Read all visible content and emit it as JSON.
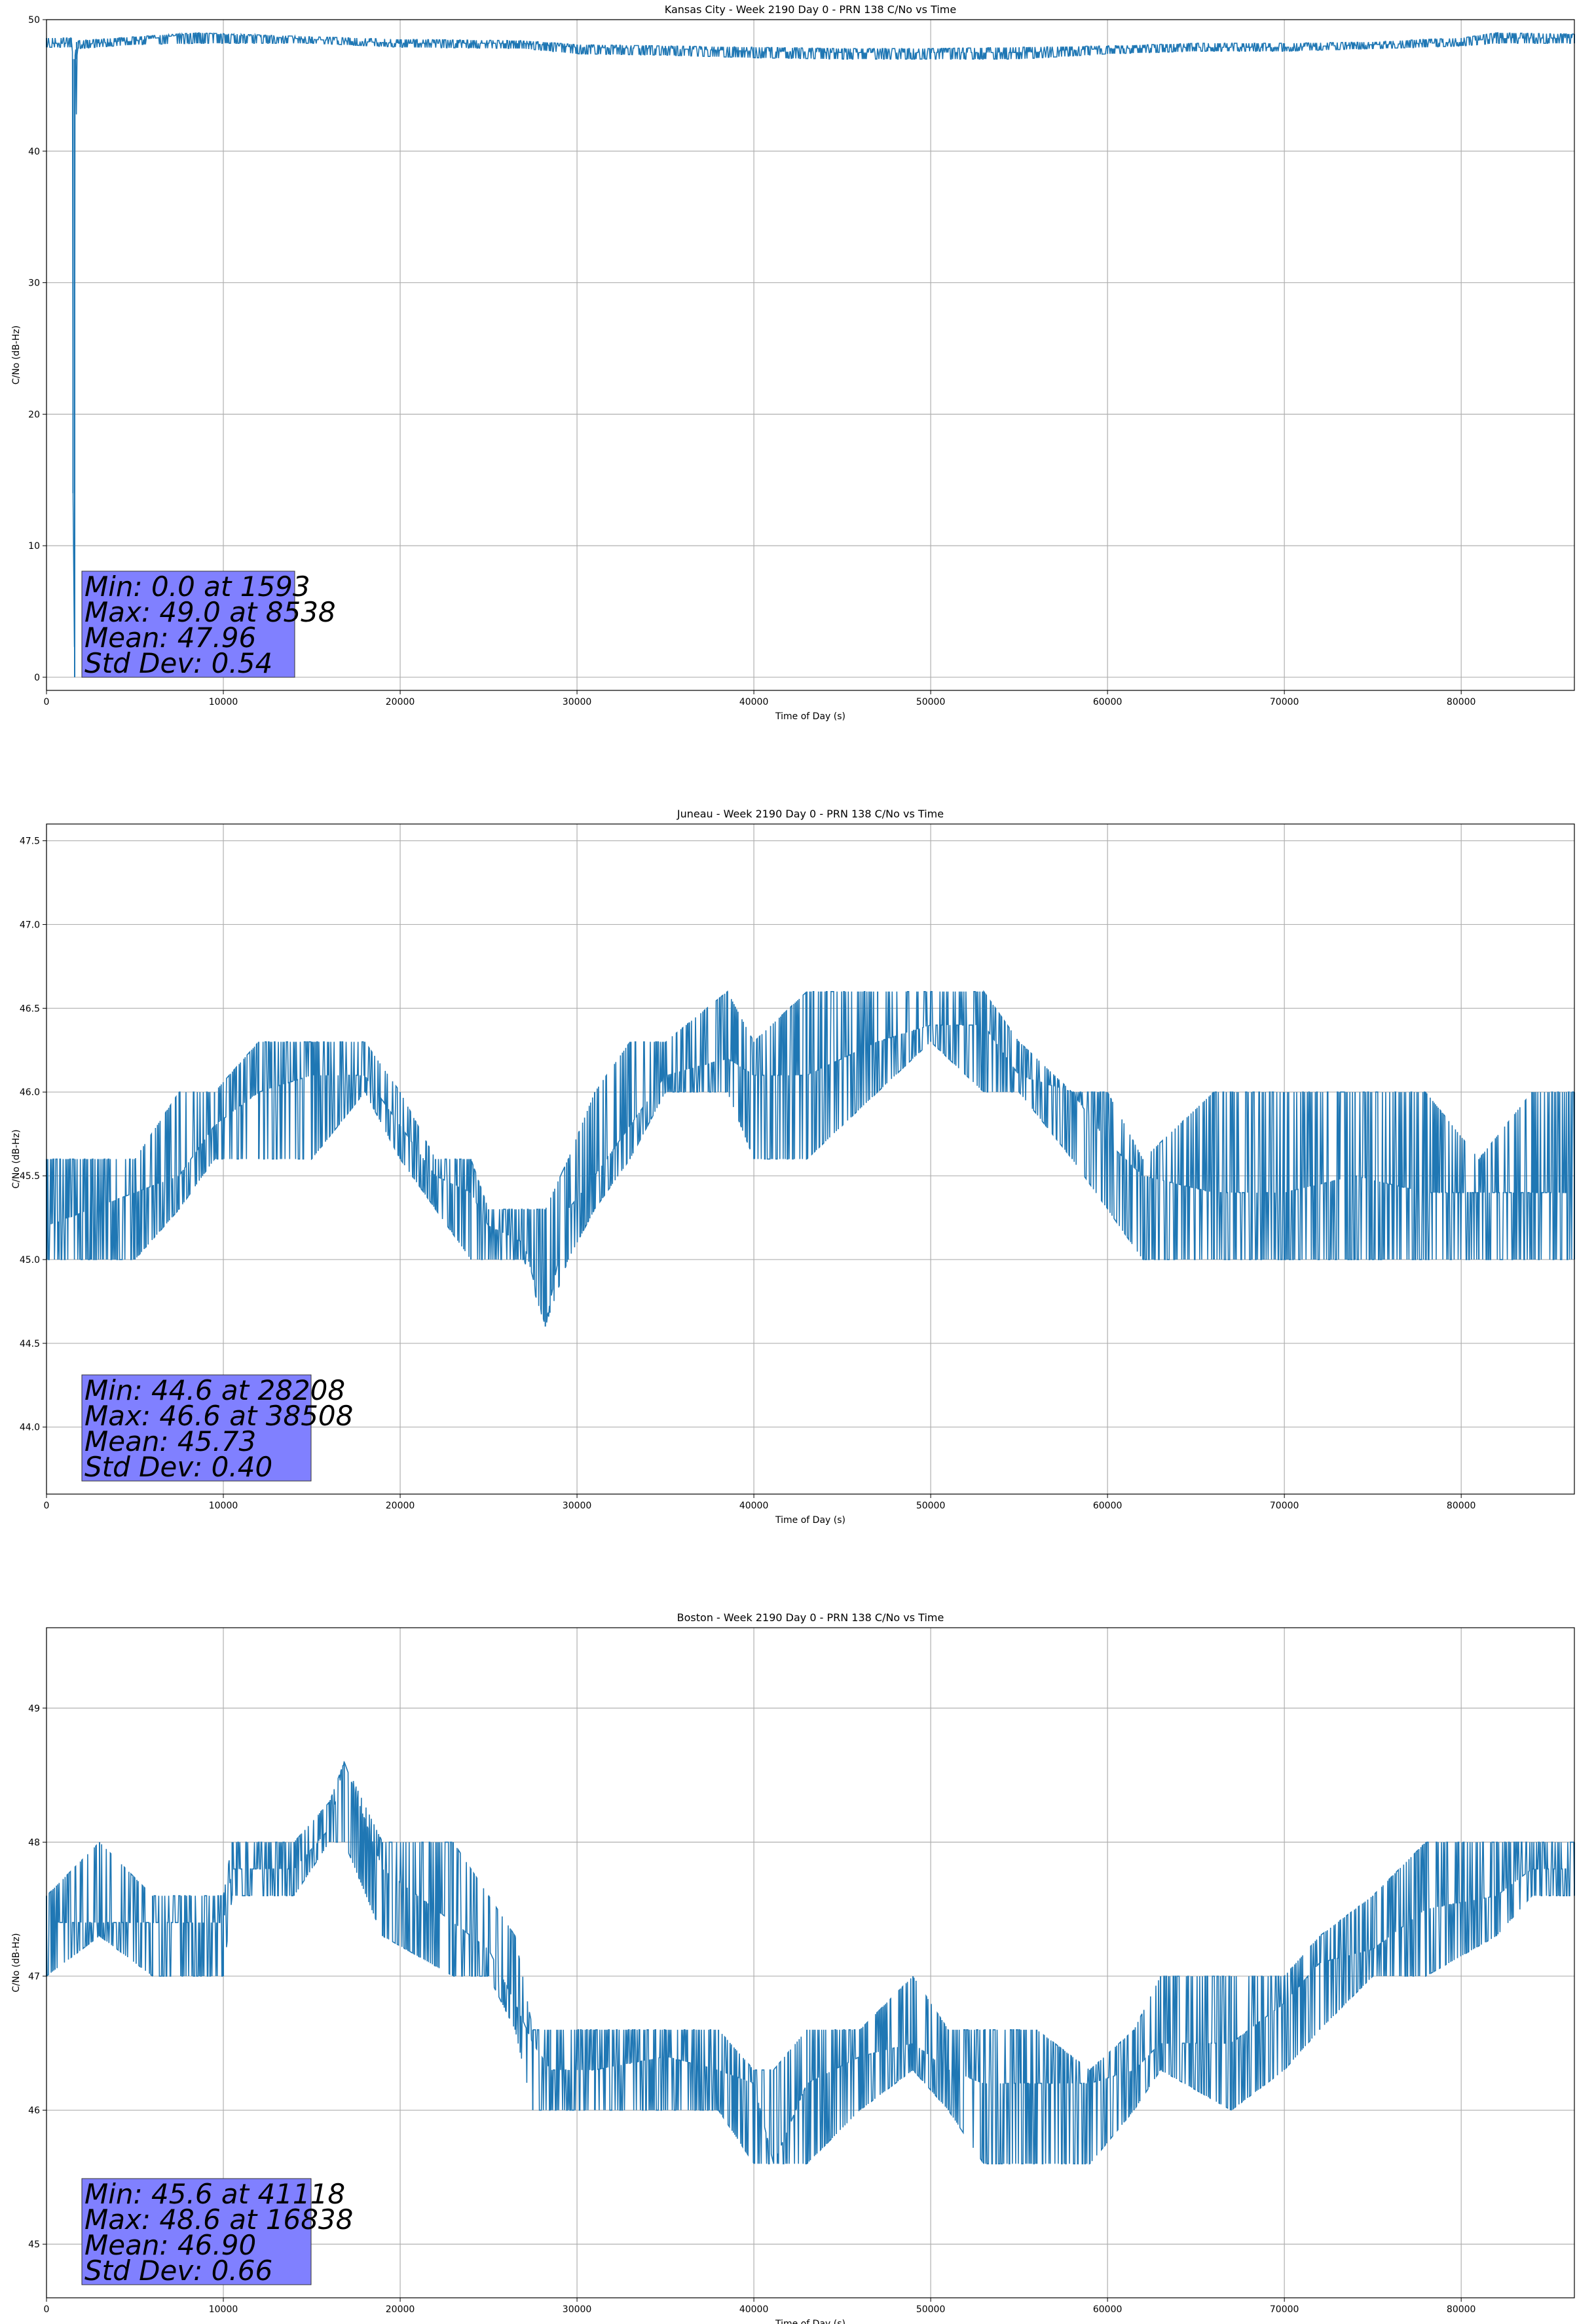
{
  "figure": {
    "background": "#ffffff",
    "series_color": "#1f77b4",
    "grid_color": "#b0b0b0",
    "stats_box_color": "#8080ff"
  },
  "chart_data": [
    {
      "type": "line",
      "title": "Kansas City - Week 2190 Day 0 - PRN 138 C/No vs Time",
      "xlabel": "Time of Day (s)",
      "ylabel": "C/No (dB-Hz)",
      "xlim": [
        0,
        86400
      ],
      "ylim": [
        -1,
        50
      ],
      "xticks": [
        0,
        10000,
        20000,
        30000,
        40000,
        50000,
        60000,
        70000,
        80000
      ],
      "yticks": [
        0,
        10,
        20,
        30,
        40,
        50
      ],
      "ytick_labels": [
        "0",
        "10",
        "20",
        "30",
        "40",
        "50"
      ],
      "grid": true,
      "stats": [
        "Min: 0.0 at 1593",
        "Max: 49.0 at 8538",
        "Mean: 47.96",
        "Std Dev: 0.54"
      ],
      "series": [
        {
          "x": [
            0,
            1400,
            1500,
            1593,
            1700,
            1800,
            5000,
            8538,
            15000,
            20000,
            27000,
            30000,
            35000,
            40000,
            45000,
            50000,
            55000,
            60000,
            65000,
            70000,
            75000,
            78000,
            80000,
            82000,
            86400
          ],
          "y": [
            48.2,
            48.2,
            14,
            0.0,
            47.0,
            48.1,
            48.4,
            49.0,
            48.5,
            48.2,
            48.2,
            47.9,
            47.8,
            47.6,
            47.5,
            47.5,
            47.5,
            47.8,
            47.9,
            47.9,
            48.1,
            48.2,
            48.3,
            48.6,
            48.6
          ],
          "band_low": [
            47.9,
            47.9,
            14,
            0.0,
            47.0,
            47.8,
            48.1,
            48.2,
            48.2,
            47.9,
            47.8,
            47.4,
            47.3,
            47.1,
            47.0,
            47.0,
            47.0,
            47.4,
            47.6,
            47.6,
            47.8,
            47.9,
            48.0,
            48.2,
            48.2
          ],
          "band_high": [
            48.6,
            48.6,
            47.0,
            47.0,
            48.3,
            48.4,
            48.7,
            49.0,
            48.7,
            48.5,
            48.4,
            48.1,
            48.0,
            47.9,
            47.8,
            47.8,
            47.9,
            48.0,
            48.2,
            48.2,
            48.3,
            48.5,
            48.6,
            49.0,
            48.9
          ]
        }
      ]
    },
    {
      "type": "line",
      "title": "Juneau - Week 2190 Day 0 - PRN 138 C/No vs Time",
      "xlabel": "Time of Day (s)",
      "ylabel": "C/No (dB-Hz)",
      "xlim": [
        0,
        86400
      ],
      "ylim": [
        43.6,
        47.6
      ],
      "xticks": [
        0,
        10000,
        20000,
        30000,
        40000,
        50000,
        60000,
        70000,
        80000
      ],
      "yticks": [
        44.0,
        44.5,
        45.0,
        45.5,
        46.0,
        46.5,
        47.0,
        47.5
      ],
      "ytick_labels": [
        "44.0",
        "44.5",
        "45.0",
        "45.5",
        "46.0",
        "46.5",
        "47.0",
        "47.5"
      ],
      "grid": true,
      "stats": [
        "Min: 44.6 at 28208",
        "Max: 46.6 at 38508",
        "Mean: 45.73",
        "Std Dev: 0.40"
      ],
      "series": [
        {
          "x": [
            0,
            2500,
            5000,
            7500,
            9500,
            12000,
            15000,
            18000,
            20000,
            22000,
            24000,
            25000,
            27000,
            28208,
            29500,
            31000,
            33000,
            35000,
            38508,
            40000,
            43000,
            47000,
            50000,
            53000,
            55000,
            58000,
            60000,
            62000,
            66000,
            70000,
            74000,
            78000,
            81000,
            84000,
            86400
          ],
          "y": [
            45.2,
            45.3,
            45.4,
            45.5,
            45.8,
            46.0,
            46.1,
            46.1,
            45.8,
            45.5,
            45.4,
            45.2,
            45.1,
            44.6,
            45.3,
            45.5,
            45.8,
            46.1,
            46.2,
            46.1,
            46.1,
            46.3,
            46.4,
            46.4,
            46.1,
            46.0,
            45.7,
            45.5,
            45.4,
            45.4,
            45.5,
            45.4,
            45.4,
            45.4,
            45.4
          ],
          "band_low": [
            45.0,
            45.0,
            45.0,
            45.3,
            45.6,
            45.6,
            45.6,
            46.0,
            45.6,
            45.3,
            45.0,
            45.0,
            45.0,
            44.6,
            45.0,
            45.3,
            45.6,
            46.0,
            46.0,
            45.6,
            45.6,
            46.0,
            46.3,
            46.0,
            46.0,
            45.6,
            45.3,
            45.0,
            45.0,
            45.0,
            45.0,
            45.0,
            45.0,
            45.0,
            45.0
          ],
          "band_high": [
            45.6,
            45.6,
            45.6,
            46.0,
            46.0,
            46.3,
            46.3,
            46.3,
            46.0,
            45.6,
            45.6,
            45.3,
            45.3,
            45.3,
            45.6,
            46.0,
            46.3,
            46.3,
            46.6,
            46.3,
            46.6,
            46.6,
            46.6,
            46.6,
            46.3,
            46.0,
            46.0,
            45.6,
            46.0,
            46.0,
            46.0,
            46.0,
            45.6,
            46.0,
            46.0
          ]
        }
      ]
    },
    {
      "type": "line",
      "title": "Boston - Week 2190 Day 0 - PRN 138 C/No vs Time",
      "xlabel": "Time of Day (s)",
      "ylabel": "C/No (dB-Hz)",
      "xlim": [
        0,
        86400
      ],
      "ylim": [
        44.6,
        49.6
      ],
      "xticks": [
        0,
        10000,
        20000,
        30000,
        40000,
        50000,
        60000,
        70000,
        80000
      ],
      "yticks": [
        45,
        46,
        47,
        48,
        49
      ],
      "ytick_labels": [
        "45",
        "46",
        "47",
        "48",
        "49"
      ],
      "grid": true,
      "stats": [
        "Min: 45.6 at 41118",
        "Max: 48.6 at 16838",
        "Mean: 46.90",
        "Std Dev: 0.66"
      ],
      "series": [
        {
          "x": [
            0,
            3000,
            6000,
            10000,
            10500,
            14000,
            16000,
            16838,
            19000,
            23000,
            25000,
            26500,
            27500,
            28500,
            31000,
            35000,
            38000,
            40000,
            41118,
            43000,
            46000,
            49000,
            51000,
            53000,
            56000,
            59000,
            61500,
            63000,
            67000,
            70000,
            72000,
            75000,
            78000,
            82000,
            84000,
            86400
          ],
          "y": [
            47.4,
            47.4,
            47.4,
            47.4,
            47.8,
            47.8,
            48.1,
            48.6,
            47.8,
            47.4,
            47.2,
            46.8,
            46.5,
            46.3,
            46.3,
            46.4,
            46.3,
            46.2,
            45.6,
            46.2,
            46.4,
            46.5,
            46.3,
            46.2,
            46.2,
            46.2,
            46.3,
            46.5,
            46.5,
            46.8,
            47.1,
            47.2,
            47.5,
            47.6,
            47.8,
            47.8
          ],
          "band_low": [
            47.0,
            47.3,
            47.0,
            47.0,
            47.6,
            47.6,
            48.0,
            48.0,
            47.3,
            47.0,
            47.0,
            46.6,
            46.0,
            46.0,
            46.0,
            46.0,
            46.0,
            45.6,
            45.6,
            45.6,
            46.0,
            46.3,
            46.0,
            45.6,
            45.6,
            45.6,
            46.0,
            46.3,
            46.0,
            46.3,
            46.6,
            47.0,
            47.0,
            47.3,
            47.6,
            47.6
          ],
          "band_high": [
            47.6,
            48.0,
            47.6,
            47.6,
            48.0,
            48.0,
            48.3,
            48.6,
            48.0,
            48.0,
            47.6,
            47.3,
            46.6,
            46.6,
            46.6,
            46.6,
            46.6,
            46.3,
            46.3,
            46.6,
            46.6,
            47.0,
            46.6,
            46.6,
            46.6,
            46.3,
            46.6,
            47.0,
            47.0,
            47.0,
            47.3,
            47.6,
            48.0,
            48.0,
            48.0,
            48.0
          ]
        }
      ]
    }
  ]
}
